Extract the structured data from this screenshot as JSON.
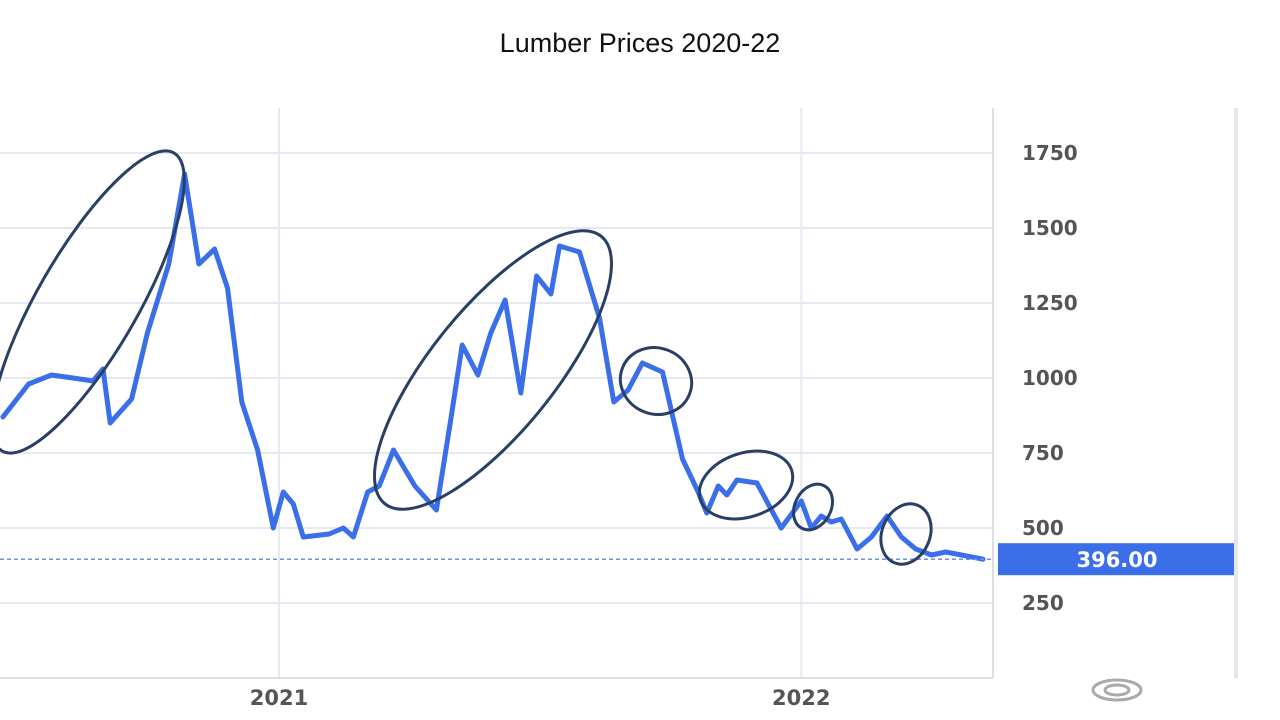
{
  "chart_data": {
    "type": "line",
    "title": "Lumber Prices 2020-22",
    "xlabel": "",
    "ylabel": "",
    "ylim": [
      0,
      1900
    ],
    "xlim": [
      "2020-06-20",
      "2022-05-15"
    ],
    "y_ticks": [
      250,
      500,
      750,
      1000,
      1250,
      1500,
      1750
    ],
    "x_ticks": [
      {
        "date": "2021-01-01",
        "label": "2021"
      },
      {
        "date": "2022-01-01",
        "label": "2022"
      }
    ],
    "grid": true,
    "last_value_label": "396.00",
    "series": [
      {
        "name": "",
        "color": "#3b6fea",
        "x": [
          "2020-06-22",
          "2020-07-10",
          "2020-07-26",
          "2020-08-10",
          "2020-08-24",
          "2020-08-31",
          "2020-09-05",
          "2020-09-20",
          "2020-10-01",
          "2020-10-16",
          "2020-10-27",
          "2020-11-06",
          "2020-11-17",
          "2020-11-26",
          "2020-12-06",
          "2020-12-17",
          "2020-12-28",
          "2021-01-04",
          "2021-01-11",
          "2021-01-18",
          "2021-02-05",
          "2021-02-15",
          "2021-02-22",
          "2021-03-04",
          "2021-03-12",
          "2021-03-22",
          "2021-04-06",
          "2021-04-21",
          "2021-05-01",
          "2021-05-09",
          "2021-05-20",
          "2021-05-29",
          "2021-06-08",
          "2021-06-19",
          "2021-06-30",
          "2021-07-10",
          "2021-07-16",
          "2021-07-30",
          "2021-08-13",
          "2021-08-23",
          "2021-09-02",
          "2021-09-12",
          "2021-09-26",
          "2021-10-10",
          "2021-10-21",
          "2021-10-27",
          "2021-11-04",
          "2021-11-10",
          "2021-11-17",
          "2021-12-01",
          "2021-12-18",
          "2022-01-01",
          "2022-01-08",
          "2022-01-15",
          "2022-01-22",
          "2022-01-29",
          "2022-02-09",
          "2022-02-19",
          "2022-03-02",
          "2022-03-12",
          "2022-03-22",
          "2022-04-02",
          "2022-04-12",
          "2022-04-23",
          "2022-05-08"
        ],
        "values": [
          870,
          980,
          1010,
          1000,
          990,
          1030,
          850,
          930,
          1150,
          1380,
          1680,
          1380,
          1430,
          1300,
          920,
          760,
          500,
          620,
          580,
          470,
          480,
          500,
          470,
          620,
          640,
          760,
          640,
          560,
          860,
          1110,
          1010,
          1150,
          1260,
          950,
          1340,
          1280,
          1440,
          1420,
          1200,
          920,
          960,
          1050,
          1020,
          730,
          620,
          550,
          640,
          610,
          660,
          650,
          500,
          590,
          500,
          540,
          520,
          530,
          430,
          470,
          540,
          470,
          430,
          410,
          420,
          410,
          396
        ]
      }
    ]
  }
}
